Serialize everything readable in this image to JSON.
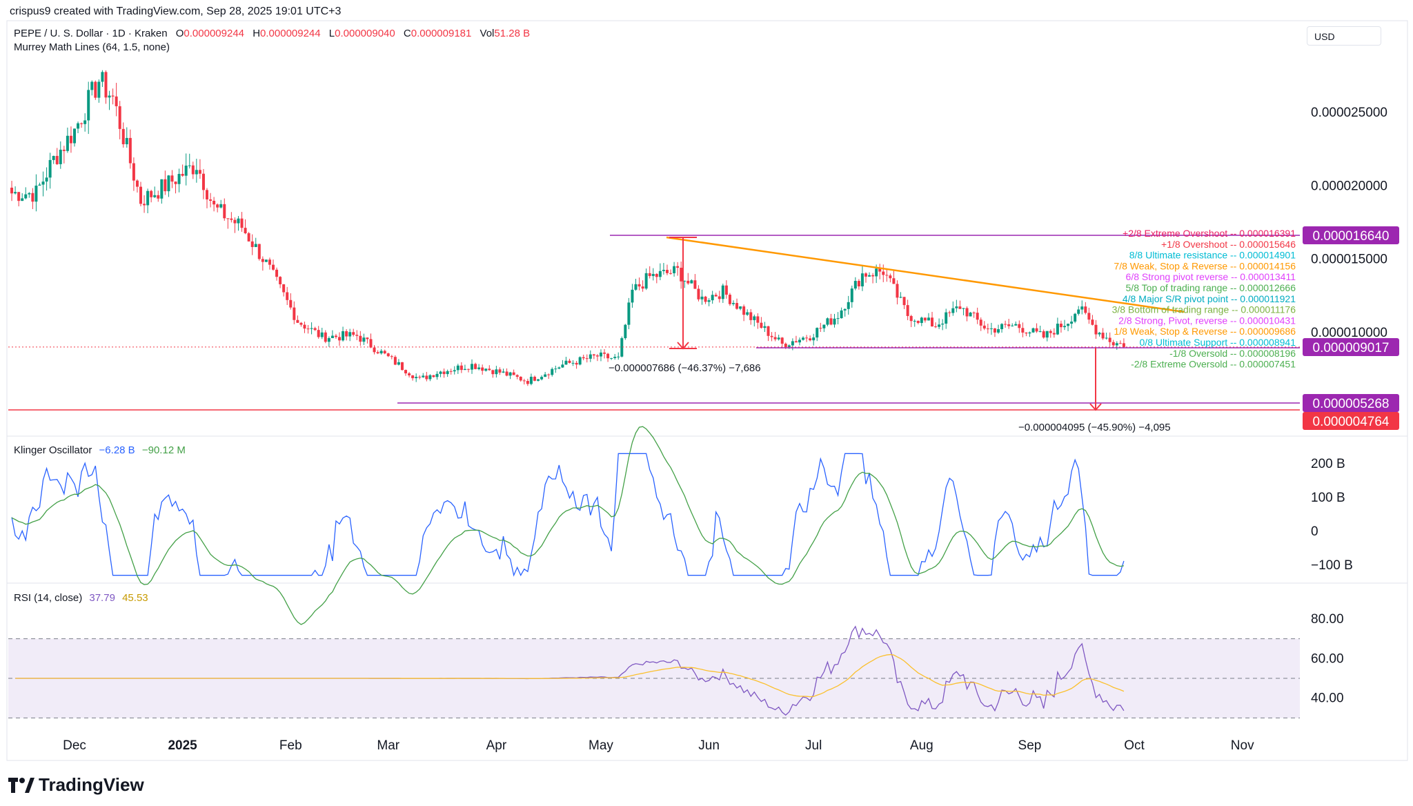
{
  "header": {
    "credit": "crispus9 created with TradingView.com, Sep 28, 2025 19:01 UTC+3",
    "symbol": "PEPE / U. S. Dollar · 1D · Kraken",
    "o_label": "O",
    "o": "0.000009244",
    "h_label": "H",
    "h": "0.000009244",
    "l_label": "L",
    "l": "0.000009040",
    "c_label": "C",
    "c": "0.000009181",
    "vol_label": "Vol",
    "vol": "51.28 B",
    "indicator": "Murrey Math Lines (64, 1.5, none)",
    "currency": "USD"
  },
  "brand": {
    "logo_text": "TradingView"
  },
  "colors": {
    "up": "#089981",
    "down": "#f23645",
    "blue": "#2962ff",
    "green_line": "#43a047",
    "rsi": "#7e57c2",
    "rsi_ma": "#fbc02d",
    "purple_level": "#9c27b0",
    "orange_trend": "#ff9800",
    "red_level": "#f23645"
  },
  "chart_data": [
    {
      "type": "candlestick",
      "x_axis": {
        "tick_labels": [
          "Dec",
          "2025",
          "Feb",
          "Mar",
          "Apr",
          "May",
          "Jun",
          "Jul",
          "Aug",
          "Sep",
          "Oct",
          "Nov"
        ]
      },
      "y_axis": {
        "tick_labels": [
          "0.000025000",
          "0.000020000",
          "0.000015000",
          "0.000010000"
        ],
        "ticks": [
          2.5e-05,
          2e-05,
          1.5e-05,
          1e-05
        ],
        "ylim": [
          3.7e-06,
          2.98e-05
        ]
      },
      "series_anchors": {
        "description_note": "approximate daily closes read from chart",
        "dates": [
          "2024-11-20",
          "2024-11-25",
          "2024-12-01",
          "2024-12-08",
          "2024-12-12",
          "2024-12-20",
          "2024-12-27",
          "2025-01-05",
          "2025-01-10",
          "2025-01-18",
          "2025-01-25",
          "2025-02-03",
          "2025-02-10",
          "2025-02-20",
          "2025-03-01",
          "2025-03-10",
          "2025-03-15",
          "2025-03-25",
          "2025-04-02",
          "2025-04-10",
          "2025-04-20",
          "2025-04-30",
          "2025-05-06",
          "2025-05-10",
          "2025-05-15",
          "2025-05-23",
          "2025-05-30",
          "2025-06-05",
          "2025-06-12",
          "2025-06-22",
          "2025-06-30",
          "2025-07-08",
          "2025-07-15",
          "2025-07-21",
          "2025-07-28",
          "2025-08-05",
          "2025-08-12",
          "2025-08-20",
          "2025-08-28",
          "2025-09-05",
          "2025-09-12",
          "2025-09-15",
          "2025-09-20",
          "2025-09-25",
          "2025-09-28"
        ],
        "close": [
          1.95e-05,
          2.18e-05,
          2.38e-05,
          2.72e-05,
          2.6e-05,
          1.9e-05,
          2e-05,
          2.15e-05,
          1.85e-05,
          1.72e-05,
          1.47e-05,
          1.08e-05,
          9.7e-06,
          9.8e-06,
          8.3e-06,
          6.8e-06,
          7.3e-06,
          7.8e-06,
          7.3e-06,
          6.7e-06,
          7.8e-06,
          8.4e-06,
          8.2e-06,
          1.28e-05,
          1.38e-05,
          1.42e-05,
          1.23e-05,
          1.28e-05,
          1.12e-05,
          9.2e-06,
          9.8e-06,
          1.12e-05,
          1.4e-05,
          1.42e-05,
          1.12e-05,
          1.05e-05,
          1.18e-05,
          1.02e-05,
          1.05e-05,
          9.7e-06,
          1.08e-05,
          1.17e-05,
          1.02e-05,
          9.3e-06,
          9.2e-06
        ]
      },
      "levels": [
        {
          "name": "+2/8 Extreme Overshoot",
          "value": "0.000016391"
        },
        {
          "name": "+1/8 Overshoot",
          "value": "0.000015646"
        },
        {
          "name": "8/8 Ultimate resistance",
          "value": "0.000014901"
        },
        {
          "name": "7/8 Weak, Stop & Reverse",
          "value": "0.000014156"
        },
        {
          "name": "6/8 Strong pivot reverse",
          "value": "0.000013411"
        },
        {
          "name": "5/8 Top of trading range",
          "value": "0.000012666"
        },
        {
          "name": "4/8 Major S/R pivot point",
          "value": "0.000011921"
        },
        {
          "name": "3/8 Bottom of trading range",
          "value": "0.000011176"
        },
        {
          "name": "2/8 Strong, Pivot, reverse",
          "value": "0.000010431"
        },
        {
          "name": "1/8 Weak, Stop & Reverse",
          "value": "0.000009686"
        },
        {
          "name": "0/8 Ultimate Support",
          "value": "0.000008941"
        },
        {
          "name": "-1/8 Oversold",
          "value": "0.000008196"
        },
        {
          "name": "-2/8 Extreme Oversold",
          "value": "0.000007451"
        }
      ],
      "price_tags": [
        "0.000016640",
        "0.000009017",
        "0.000005268",
        "0.000004764"
      ],
      "measurements": [
        {
          "text": "−0.000007686 (−46.37%) −7,686"
        },
        {
          "text": "−0.000004095 (−45.90%) −4,095"
        }
      ]
    },
    {
      "type": "line",
      "title": "Klinger Oscillator",
      "values_text": [
        "−6.28 B",
        "−90.12 M"
      ],
      "y_axis": {
        "tick_labels": [
          "200 B",
          "100 B",
          "0",
          "−100 B"
        ]
      }
    },
    {
      "type": "line",
      "title": "RSI (14, close)",
      "values_text": [
        "37.79",
        "45.53"
      ],
      "y_axis": {
        "tick_labels": [
          "80.00",
          "60.00",
          "40.00"
        ],
        "bands": [
          70,
          50,
          30
        ]
      }
    }
  ]
}
